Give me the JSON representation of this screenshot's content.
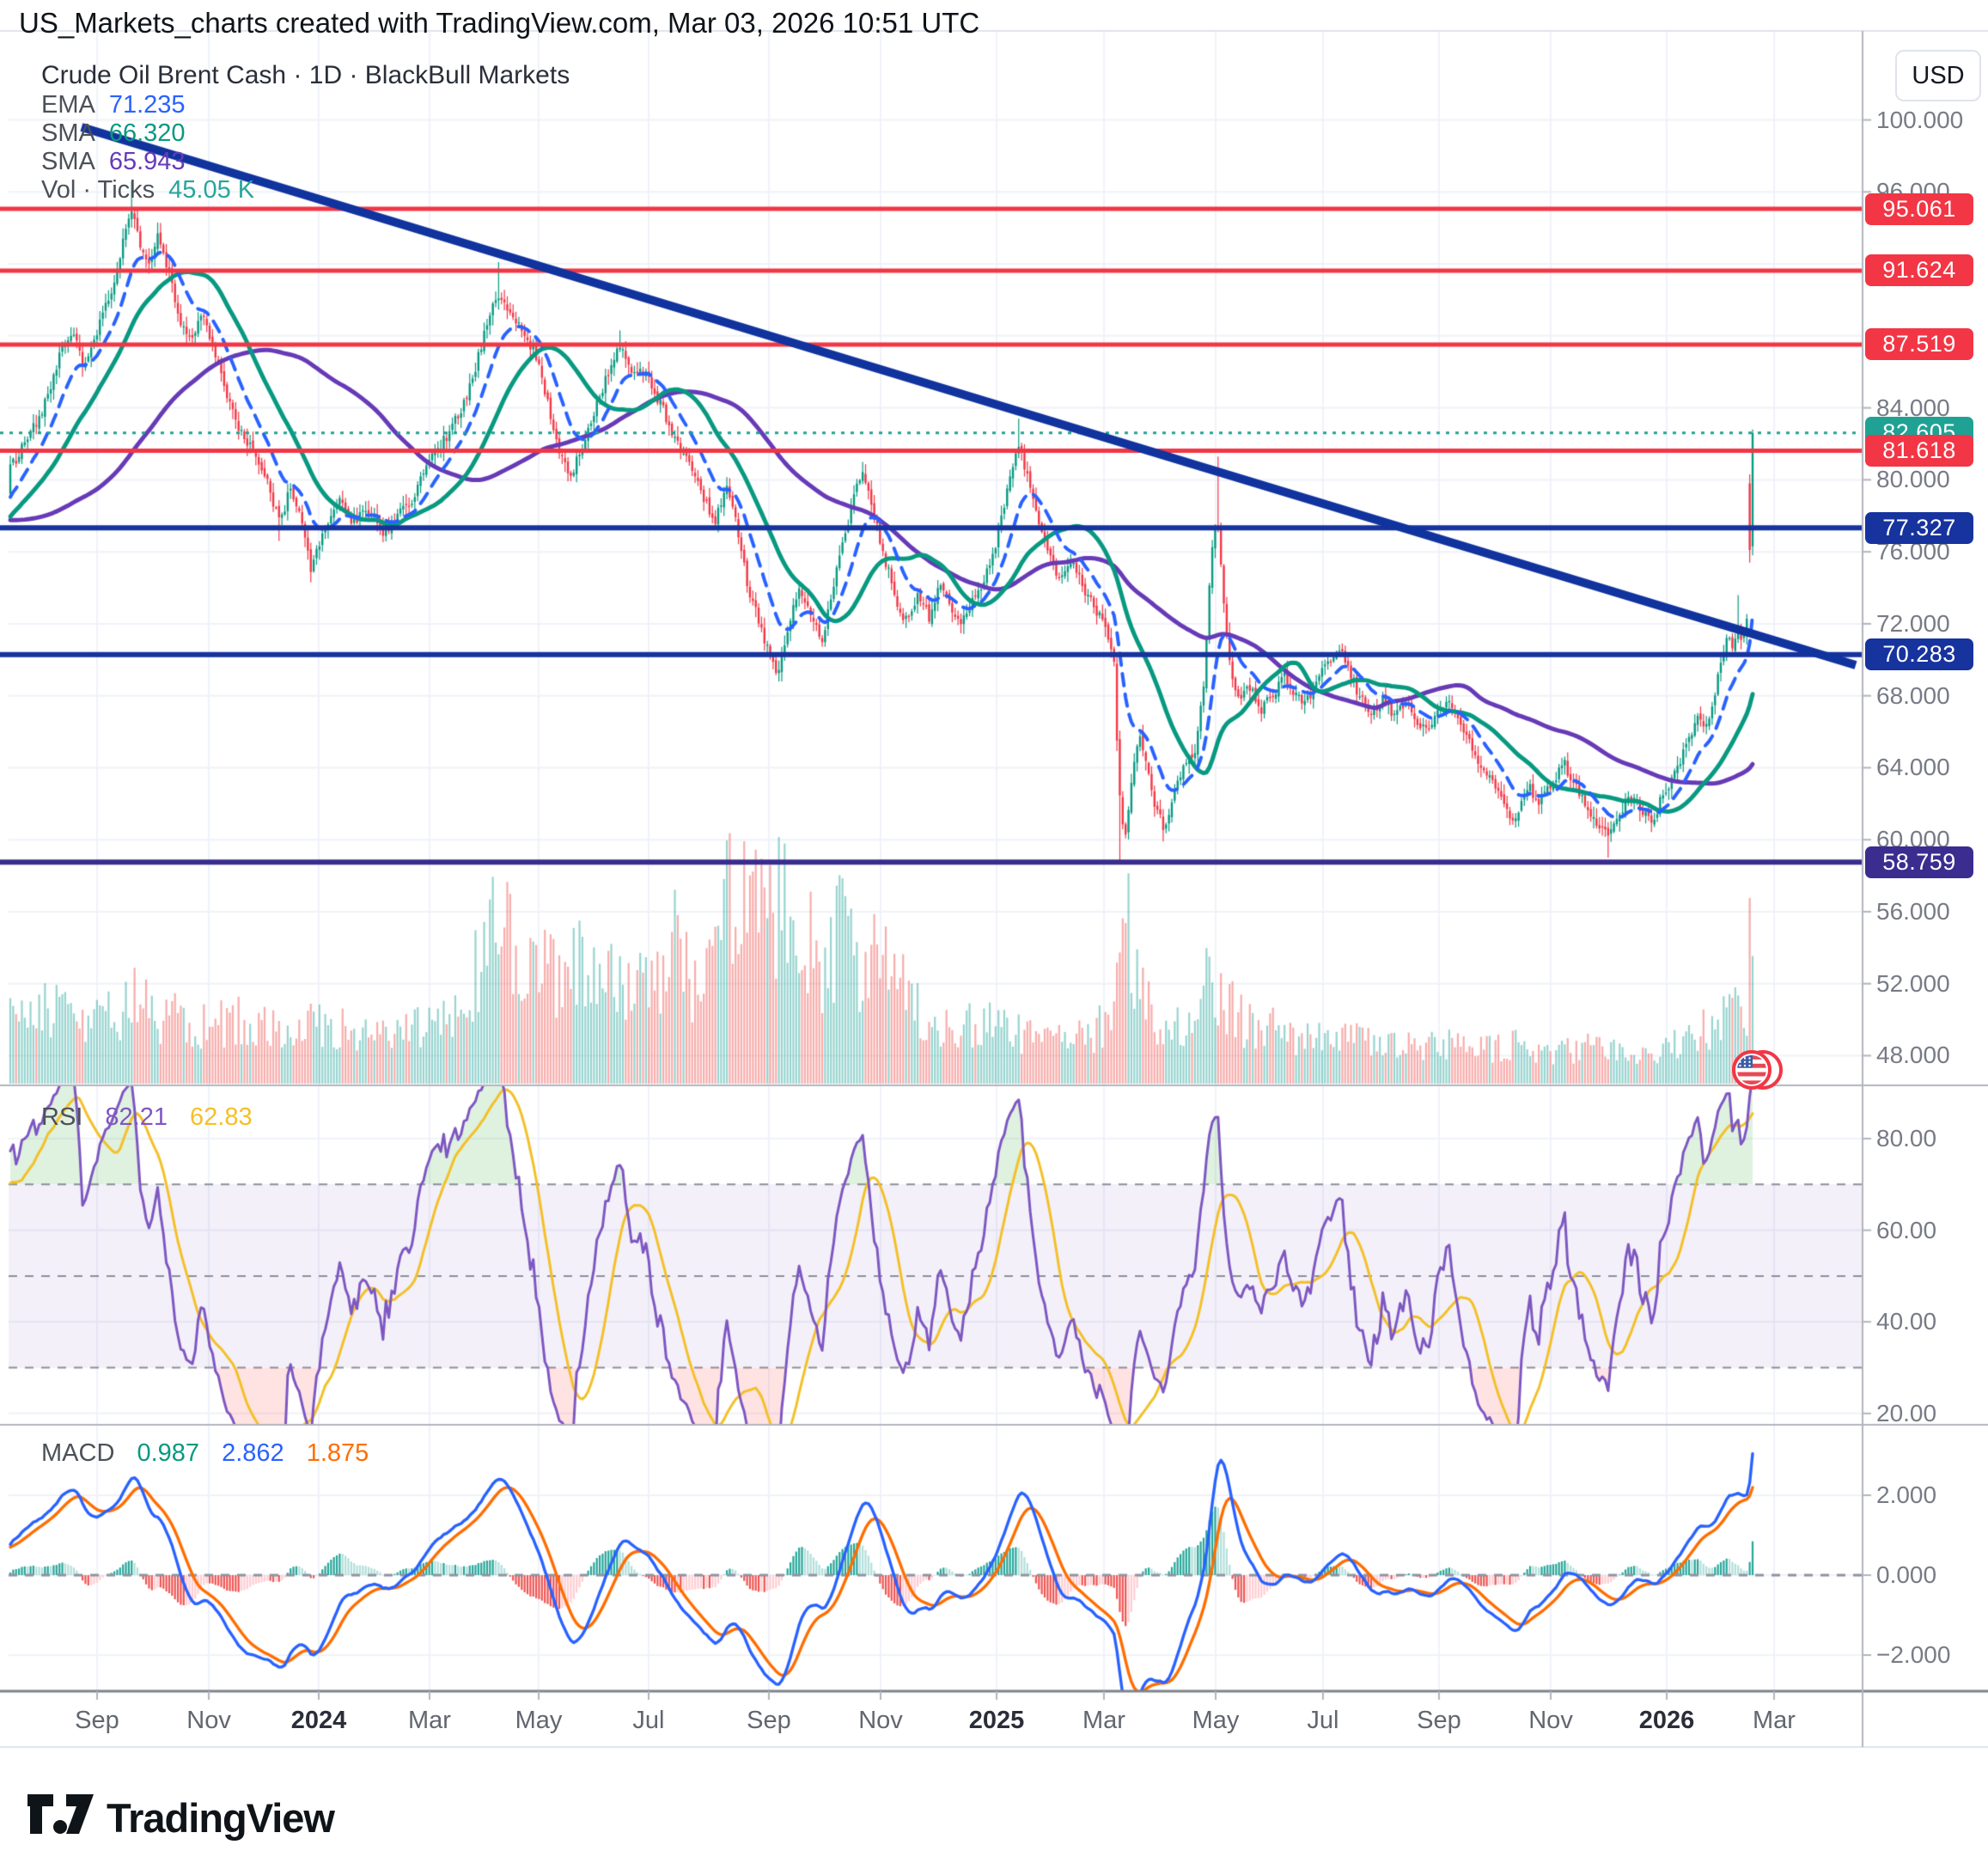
{
  "header": {
    "title": "US_Markets_charts created with TradingView.com, Mar 03, 2026 10:51 UTC"
  },
  "footer": {
    "brand": "TradingView"
  },
  "price_pane": {
    "symbol_title": "Crude Oil Brent Cash · 1D · BlackBull Markets",
    "indicators": [
      {
        "label": "EMA",
        "value": "71.235",
        "color": "#2962FF"
      },
      {
        "label": "SMA",
        "value": "66.320",
        "color": "#089981"
      },
      {
        "label": "SMA",
        "value": "65.943",
        "color": "#673AB7"
      },
      {
        "label": "Vol · Ticks",
        "value": "45.05 K",
        "color": "#26A69A"
      }
    ],
    "axis": {
      "currency_button": "USD",
      "ticks": [
        "100.000",
        "96.000",
        "84.000",
        "80.000",
        "76.000",
        "72.000",
        "68.000",
        "64.000",
        "60.000",
        "56.000",
        "52.000",
        "48.000"
      ],
      "tick_values": [
        100,
        96,
        84,
        80,
        76,
        72,
        68,
        64,
        60,
        56,
        52,
        48
      ],
      "grid_values": [
        100,
        96,
        92,
        88,
        84,
        80,
        76,
        72,
        68,
        64,
        60,
        56,
        52,
        48
      ]
    },
    "level_badges": [
      {
        "text": "95.061",
        "value": 95.061,
        "color": "#F23645",
        "style": "solid",
        "width": 5
      },
      {
        "text": "91.624",
        "value": 91.624,
        "color": "#F23645",
        "style": "solid",
        "width": 5
      },
      {
        "text": "87.519",
        "value": 87.519,
        "color": "#F23645",
        "style": "solid",
        "width": 5
      },
      {
        "text": "82.605",
        "value": 82.605,
        "color": "#1FA294",
        "style": "dotted",
        "width": 3
      },
      {
        "text": "81.618",
        "value": 81.618,
        "color": "#F23645",
        "style": "solid",
        "width": 5
      },
      {
        "text": "77.327",
        "value": 77.327,
        "color": "#16339E",
        "style": "solid",
        "width": 6
      },
      {
        "text": "70.283",
        "value": 70.283,
        "color": "#16339E",
        "style": "solid",
        "width": 6
      },
      {
        "text": "58.759",
        "value": 58.759,
        "color": "#3A2D8F",
        "style": "solid",
        "width": 6
      }
    ],
    "trendline": {
      "t1": 0.0395,
      "price1": 99.6,
      "t2": 1.0,
      "price2": 69.7,
      "color": "#10339E",
      "width": 10
    }
  },
  "rsi_pane": {
    "label": "RSI",
    "values": [
      {
        "text": "82.21",
        "color": "#7E57C2"
      },
      {
        "text": "62.83",
        "color": "#F4C028"
      }
    ],
    "ticks": [
      "80.00",
      "60.00",
      "40.00",
      "20.00"
    ],
    "tick_values": [
      80,
      60,
      40,
      20
    ],
    "band": {
      "upper": 70,
      "mid": 50,
      "lower": 30,
      "fill": "rgba(126,87,194,0.09)"
    }
  },
  "macd_pane": {
    "label": "MACD",
    "values": [
      {
        "text": "0.987",
        "color": "#089981"
      },
      {
        "text": "2.862",
        "color": "#2962FF"
      },
      {
        "text": "1.875",
        "color": "#FF6D00"
      }
    ],
    "ticks": [
      "2.000",
      "0.000",
      "−2.000"
    ],
    "tick_values": [
      2,
      0,
      -2
    ]
  },
  "time_axis": {
    "labels": [
      {
        "text": "Sep",
        "t": 0.0479,
        "bold": false
      },
      {
        "text": "Nov",
        "t": 0.1084,
        "bold": false
      },
      {
        "text": "2024",
        "t": 0.1679,
        "bold": true
      },
      {
        "text": "Mar",
        "t": 0.2279,
        "bold": false
      },
      {
        "text": "May",
        "t": 0.287,
        "bold": false
      },
      {
        "text": "Jul",
        "t": 0.3465,
        "bold": false
      },
      {
        "text": "Sep",
        "t": 0.4116,
        "bold": false
      },
      {
        "text": "Nov",
        "t": 0.4721,
        "bold": false
      },
      {
        "text": "2025",
        "t": 0.5349,
        "bold": true
      },
      {
        "text": "Mar",
        "t": 0.593,
        "bold": false
      },
      {
        "text": "May",
        "t": 0.6535,
        "bold": false
      },
      {
        "text": "Jul",
        "t": 0.7116,
        "bold": false
      },
      {
        "text": "Sep",
        "t": 0.7744,
        "bold": false
      },
      {
        "text": "Nov",
        "t": 0.8349,
        "bold": false
      },
      {
        "text": "2026",
        "t": 0.8977,
        "bold": true
      },
      {
        "text": "Mar",
        "t": 0.9558,
        "bold": false
      }
    ]
  },
  "chart_data": {
    "type": "candlestick+volume+rsi+macd",
    "symbol": "Crude Oil Brent Cash",
    "interval": "1D",
    "price_range_visible": [
      48,
      100
    ],
    "up_color": "#089981",
    "down_color": "#F23645",
    "bars_end_t": 0.941,
    "bar_count": 602,
    "price_anchors": [
      [
        0,
        80.6
      ],
      [
        0.008,
        82
      ],
      [
        0.018,
        84
      ],
      [
        0.028,
        87.3
      ],
      [
        0.034,
        88.2
      ],
      [
        0.04,
        86
      ],
      [
        0.048,
        88.6
      ],
      [
        0.056,
        91
      ],
      [
        0.062,
        93.5
      ],
      [
        0.066,
        95.3
      ],
      [
        0.07,
        93.2
      ],
      [
        0.076,
        91.8
      ],
      [
        0.08,
        93.6
      ],
      [
        0.086,
        91.5
      ],
      [
        0.092,
        88.5
      ],
      [
        0.098,
        87.8
      ],
      [
        0.104,
        89.3
      ],
      [
        0.11,
        87.3
      ],
      [
        0.118,
        84.5
      ],
      [
        0.126,
        82.4
      ],
      [
        0.134,
        81.2
      ],
      [
        0.14,
        79.6
      ],
      [
        0.146,
        77.5
      ],
      [
        0.152,
        79.6
      ],
      [
        0.158,
        77.8
      ],
      [
        0.163,
        74.9
      ],
      [
        0.17,
        77.3
      ],
      [
        0.178,
        78.9
      ],
      [
        0.186,
        77.6
      ],
      [
        0.194,
        78.3
      ],
      [
        0.202,
        77.1
      ],
      [
        0.21,
        78
      ],
      [
        0.218,
        79
      ],
      [
        0.228,
        81.2
      ],
      [
        0.236,
        82.3
      ],
      [
        0.244,
        83.8
      ],
      [
        0.252,
        86.2
      ],
      [
        0.258,
        88.6
      ],
      [
        0.264,
        90.4
      ],
      [
        0.27,
        89.2
      ],
      [
        0.278,
        88.4
      ],
      [
        0.286,
        86.6
      ],
      [
        0.292,
        84
      ],
      [
        0.298,
        81.4
      ],
      [
        0.304,
        80.2
      ],
      [
        0.31,
        82
      ],
      [
        0.318,
        84.2
      ],
      [
        0.326,
        86.6
      ],
      [
        0.331,
        87.3
      ],
      [
        0.336,
        86
      ],
      [
        0.344,
        85.9
      ],
      [
        0.352,
        84.3
      ],
      [
        0.36,
        82.4
      ],
      [
        0.368,
        80.9
      ],
      [
        0.376,
        79
      ],
      [
        0.382,
        77.6
      ],
      [
        0.388,
        79.7
      ],
      [
        0.394,
        77.2
      ],
      [
        0.4,
        74
      ],
      [
        0.406,
        72
      ],
      [
        0.412,
        70
      ],
      [
        0.416,
        69.4
      ],
      [
        0.422,
        72.2
      ],
      [
        0.428,
        74.1
      ],
      [
        0.434,
        72.4
      ],
      [
        0.44,
        71.2
      ],
      [
        0.446,
        74
      ],
      [
        0.452,
        76.8
      ],
      [
        0.458,
        79.6
      ],
      [
        0.462,
        80.3
      ],
      [
        0.468,
        78
      ],
      [
        0.474,
        75.6
      ],
      [
        0.48,
        73.4
      ],
      [
        0.486,
        72
      ],
      [
        0.492,
        73.8
      ],
      [
        0.498,
        72.2
      ],
      [
        0.504,
        74.2
      ],
      [
        0.51,
        72.8
      ],
      [
        0.516,
        72.1
      ],
      [
        0.522,
        73.3
      ],
      [
        0.528,
        74.6
      ],
      [
        0.534,
        76.4
      ],
      [
        0.54,
        79.2
      ],
      [
        0.546,
        81.9
      ],
      [
        0.55,
        80.6
      ],
      [
        0.556,
        78
      ],
      [
        0.562,
        76
      ],
      [
        0.568,
        74.6
      ],
      [
        0.574,
        75.6
      ],
      [
        0.58,
        74.3
      ],
      [
        0.586,
        73.2
      ],
      [
        0.592,
        72
      ],
      [
        0.598,
        70
      ],
      [
        0.601,
        62.5
      ],
      [
        0.604,
        60.2
      ],
      [
        0.608,
        63.8
      ],
      [
        0.612,
        65.6
      ],
      [
        0.616,
        64
      ],
      [
        0.62,
        62
      ],
      [
        0.625,
        60.6
      ],
      [
        0.63,
        62.4
      ],
      [
        0.636,
        64.2
      ],
      [
        0.642,
        65
      ],
      [
        0.647,
        68.8
      ],
      [
        0.651,
        76.4
      ],
      [
        0.654,
        77.8
      ],
      [
        0.657,
        73.8
      ],
      [
        0.661,
        69.6
      ],
      [
        0.666,
        67.8
      ],
      [
        0.672,
        68.6
      ],
      [
        0.678,
        67.2
      ],
      [
        0.684,
        68
      ],
      [
        0.69,
        69.2
      ],
      [
        0.696,
        68.2
      ],
      [
        0.702,
        67.6
      ],
      [
        0.708,
        68.8
      ],
      [
        0.714,
        70
      ],
      [
        0.72,
        70.6
      ],
      [
        0.726,
        69.2
      ],
      [
        0.732,
        67.8
      ],
      [
        0.738,
        67
      ],
      [
        0.744,
        67.8
      ],
      [
        0.75,
        66.8
      ],
      [
        0.756,
        67.6
      ],
      [
        0.762,
        66.4
      ],
      [
        0.768,
        65.9
      ],
      [
        0.774,
        67
      ],
      [
        0.78,
        67.8
      ],
      [
        0.786,
        66.4
      ],
      [
        0.792,
        65
      ],
      [
        0.798,
        64
      ],
      [
        0.804,
        62.9
      ],
      [
        0.81,
        61.8
      ],
      [
        0.816,
        61
      ],
      [
        0.822,
        63
      ],
      [
        0.828,
        62.2
      ],
      [
        0.835,
        63.2
      ],
      [
        0.842,
        64.2
      ],
      [
        0.848,
        63
      ],
      [
        0.854,
        62
      ],
      [
        0.86,
        61
      ],
      [
        0.866,
        60
      ],
      [
        0.872,
        61.3
      ],
      [
        0.878,
        62.4
      ],
      [
        0.884,
        61.6
      ],
      [
        0.89,
        61
      ],
      [
        0.896,
        62.6
      ],
      [
        0.902,
        63.6
      ],
      [
        0.908,
        65.2
      ],
      [
        0.914,
        66.8
      ],
      [
        0.918,
        66
      ],
      [
        0.922,
        67.4
      ],
      [
        0.926,
        69.4
      ],
      [
        0.93,
        71.3
      ],
      [
        0.933,
        70.6
      ],
      [
        0.936,
        71.8
      ],
      [
        0.939,
        71
      ],
      [
        0.941,
        72
      ]
    ],
    "high_overrides": [
      [
        0.066,
        96.6
      ],
      [
        0.08,
        94.3
      ],
      [
        0.264,
        92.1
      ],
      [
        0.331,
        88.3
      ],
      [
        0.462,
        81.0
      ],
      [
        0.546,
        83.4
      ],
      [
        0.654,
        81.3
      ],
      [
        0.936,
        73.6
      ]
    ],
    "low_overrides": [
      [
        0.146,
        76.6
      ],
      [
        0.163,
        74.3
      ],
      [
        0.416,
        68.8
      ],
      [
        0.601,
        58.8
      ],
      [
        0.625,
        59.9
      ],
      [
        0.866,
        59.0
      ]
    ],
    "final_bars": [
      {
        "o": 79.8,
        "h": 80.3,
        "l": 75.4,
        "c": 76.1,
        "vol": 0.8
      },
      {
        "o": 76.3,
        "h": 82.8,
        "l": 75.8,
        "c": 82.605,
        "vol": 0.55
      }
    ],
    "volume_anchors": [
      [
        0,
        0.3
      ],
      [
        0.03,
        0.38
      ],
      [
        0.05,
        0.3
      ],
      [
        0.066,
        0.42
      ],
      [
        0.08,
        0.34
      ],
      [
        0.1,
        0.27
      ],
      [
        0.13,
        0.3
      ],
      [
        0.15,
        0.24
      ],
      [
        0.17,
        0.28
      ],
      [
        0.19,
        0.22
      ],
      [
        0.21,
        0.26
      ],
      [
        0.228,
        0.3
      ],
      [
        0.24,
        0.27
      ],
      [
        0.252,
        0.55
      ],
      [
        0.258,
        0.75
      ],
      [
        0.264,
        0.85
      ],
      [
        0.272,
        0.6
      ],
      [
        0.28,
        0.5
      ],
      [
        0.29,
        0.62
      ],
      [
        0.3,
        0.48
      ],
      [
        0.31,
        0.58
      ],
      [
        0.32,
        0.42
      ],
      [
        0.33,
        0.5
      ],
      [
        0.34,
        0.45
      ],
      [
        0.35,
        0.58
      ],
      [
        0.36,
        0.68
      ],
      [
        0.37,
        0.52
      ],
      [
        0.38,
        0.62
      ],
      [
        0.39,
        0.95
      ],
      [
        0.4,
        0.78
      ],
      [
        0.406,
        0.88
      ],
      [
        0.412,
        0.72
      ],
      [
        0.416,
        0.92
      ],
      [
        0.424,
        0.66
      ],
      [
        0.432,
        0.74
      ],
      [
        0.44,
        0.6
      ],
      [
        0.45,
        0.7
      ],
      [
        0.46,
        0.56
      ],
      [
        0.47,
        0.62
      ],
      [
        0.48,
        0.46
      ],
      [
        0.49,
        0.38
      ],
      [
        0.5,
        0.3
      ],
      [
        0.52,
        0.28
      ],
      [
        0.54,
        0.26
      ],
      [
        0.56,
        0.24
      ],
      [
        0.58,
        0.22
      ],
      [
        0.598,
        0.3
      ],
      [
        0.602,
        0.6
      ],
      [
        0.606,
        0.72
      ],
      [
        0.612,
        0.42
      ],
      [
        0.62,
        0.32
      ],
      [
        0.63,
        0.28
      ],
      [
        0.64,
        0.26
      ],
      [
        0.649,
        0.55
      ],
      [
        0.656,
        0.48
      ],
      [
        0.664,
        0.32
      ],
      [
        0.68,
        0.26
      ],
      [
        0.7,
        0.23
      ],
      [
        0.72,
        0.21
      ],
      [
        0.74,
        0.22
      ],
      [
        0.76,
        0.18
      ],
      [
        0.78,
        0.2
      ],
      [
        0.8,
        0.17
      ],
      [
        0.82,
        0.19
      ],
      [
        0.84,
        0.16
      ],
      [
        0.86,
        0.18
      ],
      [
        0.88,
        0.16
      ],
      [
        0.9,
        0.17
      ],
      [
        0.91,
        0.22
      ],
      [
        0.92,
        0.27
      ],
      [
        0.93,
        0.33
      ],
      [
        0.936,
        0.38
      ],
      [
        0.94,
        0.3
      ]
    ],
    "indicator_periods": {
      "ema": 14,
      "sma_fast": 32,
      "sma_slow": 90,
      "rsi": 14,
      "rsi_ma": 14,
      "macd": [
        12,
        26,
        9
      ]
    }
  }
}
